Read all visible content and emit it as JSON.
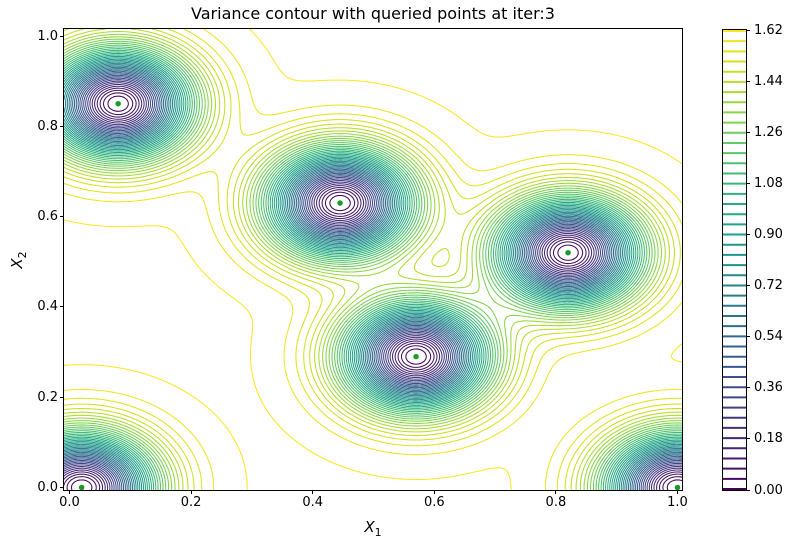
{
  "figure": {
    "title": "Variance contour with queried points at iter:3",
    "background_color": "#ffffff"
  },
  "axes": {
    "xlabel_base": "X",
    "xlabel_sub": "1",
    "ylabel_base": "X",
    "ylabel_sub": "2",
    "x_tick_labels": [
      "0.0",
      "0.2",
      "0.4",
      "0.6",
      "0.8",
      "1.0"
    ],
    "y_tick_labels": [
      "0.0",
      "0.2",
      "0.4",
      "0.6",
      "0.8",
      "1.0"
    ]
  },
  "colorbar": {
    "tick_labels": [
      "0.00",
      "0.18",
      "0.36",
      "0.54",
      "0.72",
      "0.90",
      "1.08",
      "1.26",
      "1.44",
      "1.62"
    ],
    "vmin": 0.0,
    "vmax": 1.62
  },
  "chart_data": {
    "type": "contour",
    "title": "Variance contour with queried points at iter:3",
    "xlabel": "X_1",
    "ylabel": "X_2",
    "xlim": [
      0.0,
      1.0
    ],
    "ylim": [
      0.0,
      1.0
    ],
    "x_ticks": [
      0.0,
      0.2,
      0.4,
      0.6,
      0.8,
      1.0
    ],
    "y_ticks": [
      0.0,
      0.2,
      0.4,
      0.6,
      0.8,
      1.0
    ],
    "grid": false,
    "legend": "none",
    "levels": {
      "min": 0.0,
      "max": 1.62,
      "step": 0.036,
      "count": 46
    },
    "colormap": "viridis",
    "colormap_stops": [
      "#440154",
      "#48186a",
      "#472d7b",
      "#424086",
      "#3b528b",
      "#33638d",
      "#2c728e",
      "#26828e",
      "#21918c",
      "#1fa088",
      "#28ae80",
      "#3fbc73",
      "#5ec962",
      "#84d44b",
      "#addc30",
      "#d8e219",
      "#fde725"
    ],
    "colorbar_tick_values": [
      0.0,
      0.18,
      0.36,
      0.54,
      0.72,
      0.9,
      1.08,
      1.26,
      1.44,
      1.62
    ],
    "surface_model": {
      "description": "GP posterior variance: v(x) = max_variance * prod_i (1 - exp(-|x-p_i|^2 / (2*lengthscale^2)))",
      "max_variance": 1.625,
      "lengthscale": 0.08
    },
    "queried_points": [
      {
        "x": 0.08,
        "y": 0.85
      },
      {
        "x": 0.445,
        "y": 0.63
      },
      {
        "x": 0.57,
        "y": 0.29
      },
      {
        "x": 0.82,
        "y": 0.52
      },
      {
        "x": 0.02,
        "y": 0.0
      },
      {
        "x": 1.0,
        "y": 0.0
      }
    ],
    "marker": {
      "fill_color": "#1c9a28",
      "edge_color": "#ffffff",
      "halo_color": "#ffffff"
    }
  }
}
